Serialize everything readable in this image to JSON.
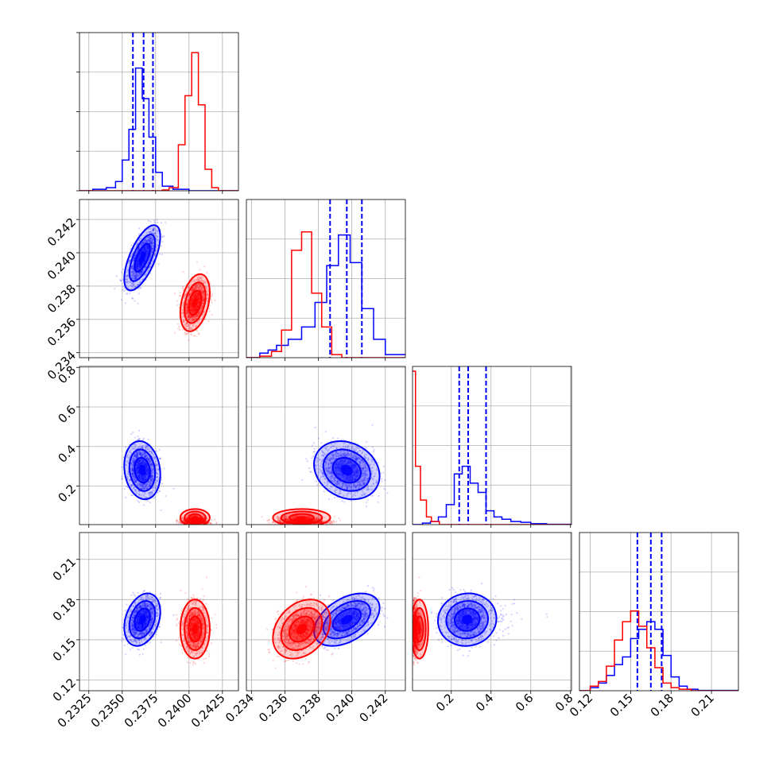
{
  "colors": {
    "red": "#ff0000",
    "blue": "#0000ff",
    "grid": "#b0b0b0"
  },
  "chart_data": {
    "type": "corner",
    "grid": true,
    "parameters": [
      {
        "id": "p0",
        "range": [
          0.2318,
          0.2437
        ],
        "ticks": [
          "0.2325",
          "0.2350",
          "0.2375",
          "0.2400",
          "0.2425"
        ],
        "tick_values": [
          0.2325,
          0.235,
          0.2375,
          0.24,
          0.2425
        ]
      },
      {
        "id": "p1",
        "range": [
          0.2337,
          0.2432
        ],
        "ticks": [
          "0.234",
          "0.236",
          "0.238",
          "0.240",
          "0.242"
        ],
        "tick_values": [
          0.234,
          0.236,
          0.238,
          0.24,
          0.242
        ]
      },
      {
        "id": "p2",
        "range": [
          0.005,
          0.805
        ],
        "ticks": [
          "0.2",
          "0.4",
          "0.6",
          "0.8"
        ],
        "tick_values": [
          0.2,
          0.4,
          0.6,
          0.8
        ]
      },
      {
        "id": "p3",
        "range": [
          0.112,
          0.23
        ],
        "ticks": [
          "0.12",
          "0.15",
          "0.18",
          "0.21"
        ],
        "tick_values": [
          0.12,
          0.15,
          0.18,
          0.21
        ]
      }
    ],
    "series": [
      {
        "color": "blue",
        "means": [
          0.2365,
          0.2397,
          0.28,
          0.165
        ],
        "sds": [
          0.00055,
          0.0008,
          0.06,
          0.008
        ],
        "corr": [
          [
            0,
            1,
            0.65
          ],
          [
            1,
            2,
            -0.2
          ],
          [
            0,
            2,
            -0.15
          ],
          [
            0,
            3,
            0.3
          ],
          [
            1,
            3,
            0.45
          ],
          [
            2,
            3,
            0.05
          ]
        ],
        "quantiles": [
          [
            0.2358,
            0.2366,
            0.2373
          ],
          [
            0.2387,
            0.2397,
            0.2406
          ],
          [
            0.24,
            0.285,
            0.375
          ],
          [
            0.155,
            0.165,
            0.173
          ]
        ],
        "hist": [
          [
            [
              0.2318,
              0.2328,
              0.0
            ],
            [
              0.2328,
              0.2338,
              0.01
            ],
            [
              0.2338,
              0.2345,
              0.02
            ],
            [
              0.2345,
              0.235,
              0.06
            ],
            [
              0.235,
              0.2355,
              0.2
            ],
            [
              0.2355,
              0.236,
              0.4
            ],
            [
              0.236,
              0.2365,
              0.8
            ],
            [
              0.2365,
              0.237,
              0.6
            ],
            [
              0.237,
              0.2375,
              0.35
            ],
            [
              0.2375,
              0.238,
              0.12
            ],
            [
              0.238,
              0.2388,
              0.03
            ],
            [
              0.2388,
              0.24,
              0.01
            ],
            [
              0.24,
              0.2437,
              0.0
            ]
          ],
          [
            [
              0.2337,
              0.2345,
              0.0
            ],
            [
              0.2345,
              0.235,
              0.03
            ],
            [
              0.235,
              0.2355,
              0.05
            ],
            [
              0.2355,
              0.2362,
              0.08
            ],
            [
              0.2362,
              0.237,
              0.12
            ],
            [
              0.237,
              0.2378,
              0.2
            ],
            [
              0.2378,
              0.2385,
              0.36
            ],
            [
              0.2385,
              0.2392,
              0.6
            ],
            [
              0.2392,
              0.2399,
              0.8
            ],
            [
              0.2399,
              0.2406,
              0.62
            ],
            [
              0.2406,
              0.2413,
              0.32
            ],
            [
              0.2413,
              0.242,
              0.12
            ],
            [
              0.242,
              0.2432,
              0.02
            ]
          ],
          [
            [
              0.005,
              0.055,
              0.0
            ],
            [
              0.055,
              0.095,
              0.01
            ],
            [
              0.095,
              0.135,
              0.02
            ],
            [
              0.135,
              0.175,
              0.05
            ],
            [
              0.175,
              0.215,
              0.13
            ],
            [
              0.215,
              0.255,
              0.33
            ],
            [
              0.255,
              0.295,
              0.38
            ],
            [
              0.295,
              0.335,
              0.27
            ],
            [
              0.335,
              0.375,
              0.21
            ],
            [
              0.375,
              0.415,
              0.09
            ],
            [
              0.415,
              0.455,
              0.05
            ],
            [
              0.455,
              0.5,
              0.035
            ],
            [
              0.5,
              0.55,
              0.02
            ],
            [
              0.55,
              0.6,
              0.015
            ],
            [
              0.6,
              0.68,
              0.006
            ],
            [
              0.68,
              0.805,
              0.002
            ]
          ],
          [
            [
              0.112,
              0.12,
              0.0
            ],
            [
              0.12,
              0.126,
              0.02
            ],
            [
              0.126,
              0.132,
              0.05
            ],
            [
              0.132,
              0.138,
              0.1
            ],
            [
              0.138,
              0.144,
              0.17
            ],
            [
              0.144,
              0.15,
              0.22
            ],
            [
              0.15,
              0.156,
              0.34
            ],
            [
              0.156,
              0.162,
              0.4
            ],
            [
              0.162,
              0.168,
              0.45
            ],
            [
              0.168,
              0.174,
              0.4
            ],
            [
              0.174,
              0.18,
              0.23
            ],
            [
              0.18,
              0.186,
              0.09
            ],
            [
              0.186,
              0.192,
              0.03
            ],
            [
              0.192,
              0.2,
              0.01
            ],
            [
              0.2,
              0.23,
              0.002
            ]
          ]
        ]
      },
      {
        "color": "red",
        "means": [
          0.24045,
          0.237,
          0.04,
          0.158
        ],
        "sds": [
          0.00045,
          0.0007,
          0.018,
          0.009
        ],
        "corr": [
          [
            0,
            1,
            0.35
          ],
          [
            1,
            2,
            0.0
          ],
          [
            0,
            2,
            0.0
          ],
          [
            0,
            3,
            0.0
          ],
          [
            1,
            3,
            0.3
          ],
          [
            2,
            3,
            0.0
          ]
        ],
        "quantiles": [],
        "hist": [
          [
            [
              0.2318,
              0.238,
              0.0
            ],
            [
              0.238,
              0.2385,
              0.005
            ],
            [
              0.2385,
              0.2392,
              0.02
            ],
            [
              0.2392,
              0.2397,
              0.3
            ],
            [
              0.2397,
              0.2402,
              0.62
            ],
            [
              0.2402,
              0.2407,
              0.9
            ],
            [
              0.2407,
              0.2412,
              0.56
            ],
            [
              0.2412,
              0.2417,
              0.14
            ],
            [
              0.2417,
              0.2422,
              0.02
            ],
            [
              0.2422,
              0.2437,
              0.0
            ]
          ],
          [
            [
              0.2337,
              0.2345,
              0.0
            ],
            [
              0.2345,
              0.2352,
              0.01
            ],
            [
              0.2352,
              0.2358,
              0.04
            ],
            [
              0.2358,
              0.2364,
              0.18
            ],
            [
              0.2364,
              0.237,
              0.7
            ],
            [
              0.237,
              0.2376,
              0.82
            ],
            [
              0.2376,
              0.2382,
              0.42
            ],
            [
              0.2382,
              0.2388,
              0.2
            ],
            [
              0.2388,
              0.2394,
              0.02
            ],
            [
              0.2394,
              0.2432,
              0.0
            ]
          ],
          [
            [
              0.005,
              0.02,
              1.0
            ],
            [
              0.02,
              0.045,
              0.38
            ],
            [
              0.045,
              0.075,
              0.16
            ],
            [
              0.075,
              0.1,
              0.05
            ],
            [
              0.1,
              0.14,
              0.02
            ],
            [
              0.14,
              0.805,
              0.0
            ]
          ],
          [
            [
              0.112,
              0.12,
              0.0
            ],
            [
              0.12,
              0.126,
              0.03
            ],
            [
              0.126,
              0.132,
              0.06
            ],
            [
              0.132,
              0.138,
              0.16
            ],
            [
              0.138,
              0.144,
              0.33
            ],
            [
              0.144,
              0.15,
              0.45
            ],
            [
              0.15,
              0.156,
              0.52
            ],
            [
              0.156,
              0.162,
              0.42
            ],
            [
              0.162,
              0.168,
              0.28
            ],
            [
              0.168,
              0.174,
              0.15
            ],
            [
              0.174,
              0.18,
              0.05
            ],
            [
              0.18,
              0.186,
              0.02
            ],
            [
              0.186,
              0.195,
              0.01
            ],
            [
              0.195,
              0.23,
              0.0
            ]
          ]
        ]
      }
    ]
  }
}
